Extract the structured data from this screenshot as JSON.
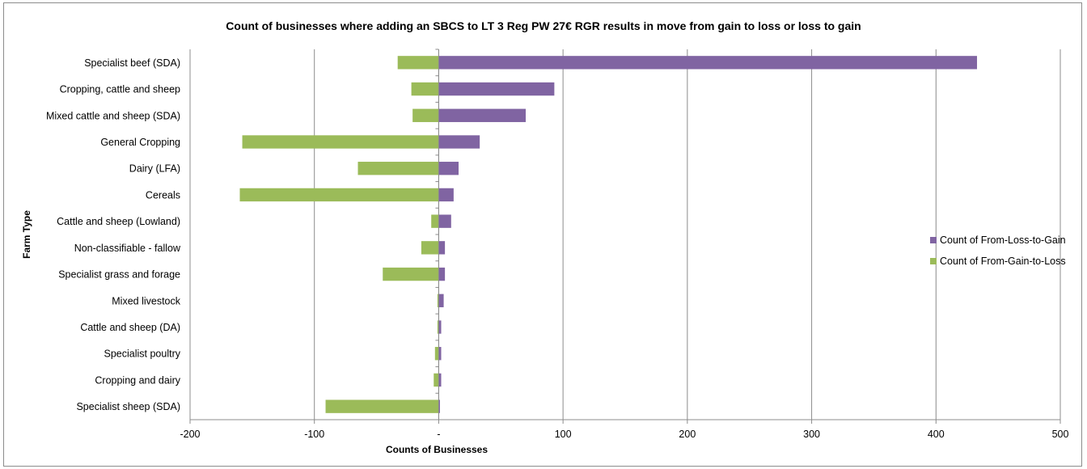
{
  "chart_data": {
    "type": "bar",
    "orientation": "horizontal",
    "stacked": true,
    "title": "Count of businesses where adding an SBCS to LT 3 Reg PW 27€ RGR  results in move from gain to loss or  loss to gain",
    "xlabel": "Counts of Businesses",
    "ylabel": "Farm Type",
    "xlim": [
      -200,
      500
    ],
    "xticks": [
      -200,
      -100,
      0,
      100,
      200,
      300,
      400,
      500
    ],
    "xtick_labels": [
      "-200",
      "-100",
      "-",
      "100",
      "200",
      "300",
      "400",
      "500"
    ],
    "grid": "vertical",
    "legend_position": "right",
    "categories": [
      "Specialist beef (SDA)",
      "Cropping, cattle and sheep",
      "Mixed cattle and sheep (SDA)",
      "General Cropping",
      "Dairy (LFA)",
      "Cereals",
      "Cattle and sheep (Lowland)",
      "Non-classifiable - fallow",
      "Specialist grass and forage",
      "Mixed livestock",
      "Cattle and sheep (DA)",
      "Specialist poultry",
      "Cropping and dairy",
      "Specialist sheep (SDA)"
    ],
    "series": [
      {
        "name": "Count of From-Loss-to-Gain",
        "color": "#8064a2",
        "values": [
          433,
          93,
          70,
          33,
          16,
          12,
          10,
          5,
          5,
          4,
          2,
          2,
          2,
          1
        ]
      },
      {
        "name": "Count of From-Gain-to-Loss",
        "color": "#9bbb59",
        "values": [
          -33,
          -22,
          -21,
          -158,
          -65,
          -160,
          -6,
          -14,
          -45,
          -1,
          -1,
          -3,
          -4,
          -91
        ]
      }
    ]
  }
}
